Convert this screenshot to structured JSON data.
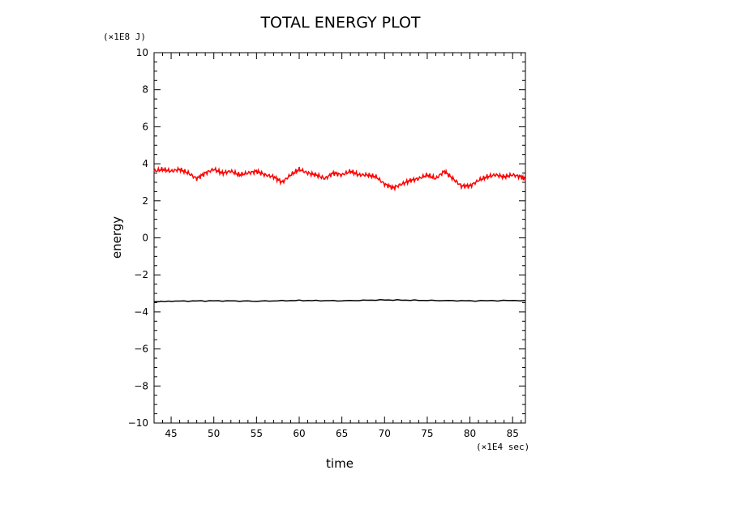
{
  "chart_data": {
    "type": "line",
    "title": "TOTAL ENERGY PLOT",
    "xlabel": "time",
    "ylabel": "energy",
    "x_unit": "(×1E4 sec)",
    "y_unit": "(×1E8 J)",
    "xlim": [
      43,
      86.5
    ],
    "ylim": [
      -10,
      10
    ],
    "x_ticks": [
      45,
      50,
      55,
      60,
      65,
      70,
      75,
      80,
      85
    ],
    "y_ticks": [
      -10,
      -8,
      -6,
      -4,
      -2,
      0,
      2,
      4,
      6,
      8,
      10
    ],
    "x_tick_labels": [
      "45",
      "50",
      "55",
      "60",
      "65",
      "70",
      "75",
      "80",
      "85"
    ],
    "y_tick_labels": [
      "−10",
      "−8",
      "−6",
      "−4",
      "−2",
      "0",
      "2",
      "4",
      "6",
      "8",
      "10"
    ],
    "grid": false,
    "series": [
      {
        "color": "#ff0000",
        "x": [
          43,
          44,
          45,
          46,
          47,
          48,
          49,
          50,
          51,
          52,
          53,
          54,
          55,
          56,
          57,
          58,
          59,
          60,
          61,
          62,
          63,
          64,
          65,
          66,
          67,
          68,
          69,
          70,
          71,
          72,
          73,
          74,
          75,
          76,
          77,
          78,
          79,
          80,
          81,
          82,
          83,
          84,
          85,
          86,
          86.5
        ],
        "y": [
          3.6,
          3.7,
          3.6,
          3.7,
          3.5,
          3.2,
          3.5,
          3.7,
          3.5,
          3.6,
          3.4,
          3.5,
          3.6,
          3.4,
          3.3,
          3.0,
          3.4,
          3.7,
          3.5,
          3.4,
          3.2,
          3.5,
          3.4,
          3.6,
          3.4,
          3.4,
          3.3,
          2.9,
          2.7,
          2.9,
          3.1,
          3.2,
          3.4,
          3.2,
          3.6,
          3.2,
          2.8,
          2.8,
          3.1,
          3.3,
          3.4,
          3.3,
          3.4,
          3.3,
          3.2
        ]
      },
      {
        "color": "#000000",
        "x": [
          43,
          45,
          50,
          55,
          60,
          65,
          70,
          75,
          80,
          86.5
        ],
        "y": [
          -3.45,
          -3.42,
          -3.4,
          -3.42,
          -3.38,
          -3.4,
          -3.35,
          -3.38,
          -3.4,
          -3.38
        ]
      }
    ]
  }
}
